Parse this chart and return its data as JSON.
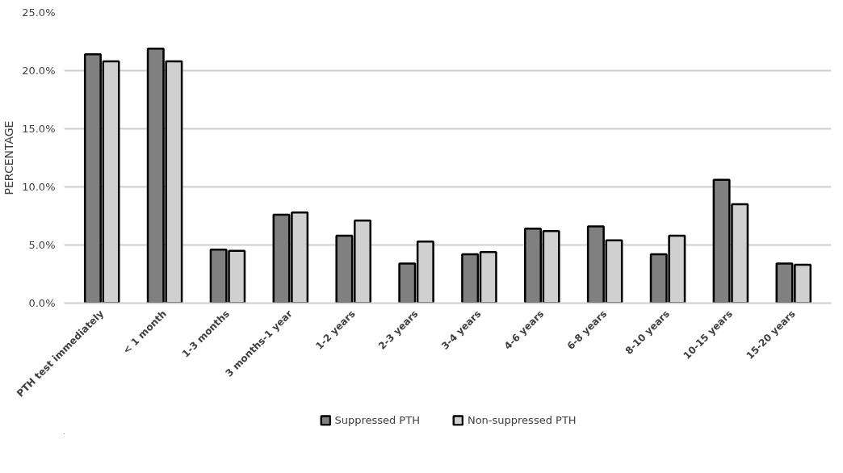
{
  "chart_data": {
    "type": "bar",
    "ylabel": "PERCENTAGE",
    "categories": [
      "PTH test immediately",
      "< 1 month",
      "1-3 months",
      "3 months-1 year",
      "1-2 years",
      "2-3 years",
      "3-4 years",
      "4-6 years",
      "6-8 years",
      "8-10 years",
      "10-15 years",
      "15-20 years"
    ],
    "series": [
      {
        "name": "Suppressed PTH",
        "color": "#808080",
        "values": [
          21.4,
          21.9,
          4.6,
          7.6,
          5.8,
          3.4,
          4.2,
          6.4,
          6.6,
          4.2,
          10.6,
          3.4
        ]
      },
      {
        "name": "Non-suppressed PTH",
        "color": "#d0d0d0",
        "values": [
          20.8,
          20.8,
          4.5,
          7.8,
          7.1,
          5.3,
          4.4,
          6.2,
          5.4,
          5.8,
          8.5,
          3.3
        ]
      }
    ],
    "ylim": [
      0,
      25
    ],
    "yticks": [
      {
        "value": 0,
        "label": "0.0%"
      },
      {
        "value": 5,
        "label": "5.0%"
      },
      {
        "value": 10,
        "label": "10.0%"
      },
      {
        "value": 15,
        "label": "15.0%"
      },
      {
        "value": 20,
        "label": "20.0%"
      },
      {
        "value": 25,
        "label": "25.0%"
      }
    ],
    "grid": "y",
    "legend": "bottom"
  }
}
